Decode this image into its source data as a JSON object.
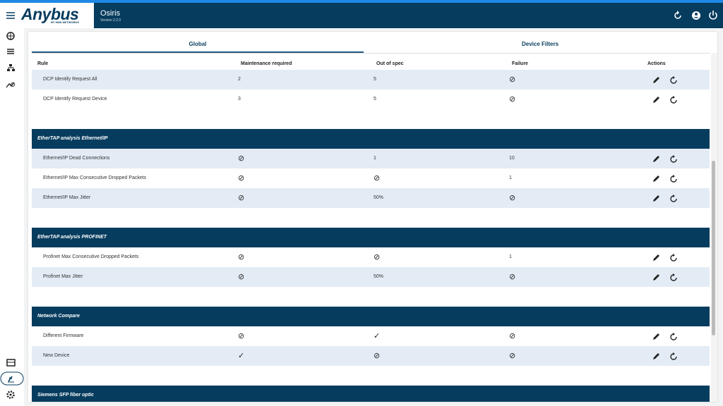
{
  "header": {
    "brand": "Anybus",
    "brand_sub": "BY HMS NETWORKS",
    "app": "Osiris",
    "version": "Version 2.2.0"
  },
  "tabs": [
    "Global",
    "Device Filters"
  ],
  "table": {
    "columns": [
      "Rule",
      "Maintenance required",
      "Out of spec",
      "Failure",
      "Actions"
    ],
    "groups": [
      {
        "rows": [
          [
            "DCP Identify Request All",
            "2",
            "5",
            "⊘"
          ],
          [
            "DCP Identify Request Device",
            "3",
            "5",
            "⊘"
          ]
        ]
      },
      {
        "title": "EtherTAP analysis Ethernet/IP",
        "rows": [
          [
            "Ethernet/IP Dead Connections",
            "⊘",
            "1",
            "10"
          ],
          [
            "Ethernet/IP Max Consecutive Dropped Packets",
            "⊘",
            "⊘",
            "1"
          ],
          [
            "Ethernet/IP Max Jitter",
            "⊘",
            "50%",
            "⊘"
          ]
        ]
      },
      {
        "title": "EtherTAP analysis PROFINET",
        "rows": [
          [
            "Profinet Max Consecutive Dropped Packets",
            "⊘",
            "⊘",
            "1"
          ],
          [
            "Profinet Max Jitter",
            "⊘",
            "50%",
            "⊘"
          ]
        ]
      },
      {
        "title": "Network Compare",
        "rows": [
          [
            "Different Firmware",
            "⊘",
            "✓",
            "⊘"
          ],
          [
            "New Device",
            "✓",
            "⊘",
            "⊘"
          ]
        ]
      },
      {
        "title": "Siemens SFP fiber optic"
      }
    ]
  }
}
